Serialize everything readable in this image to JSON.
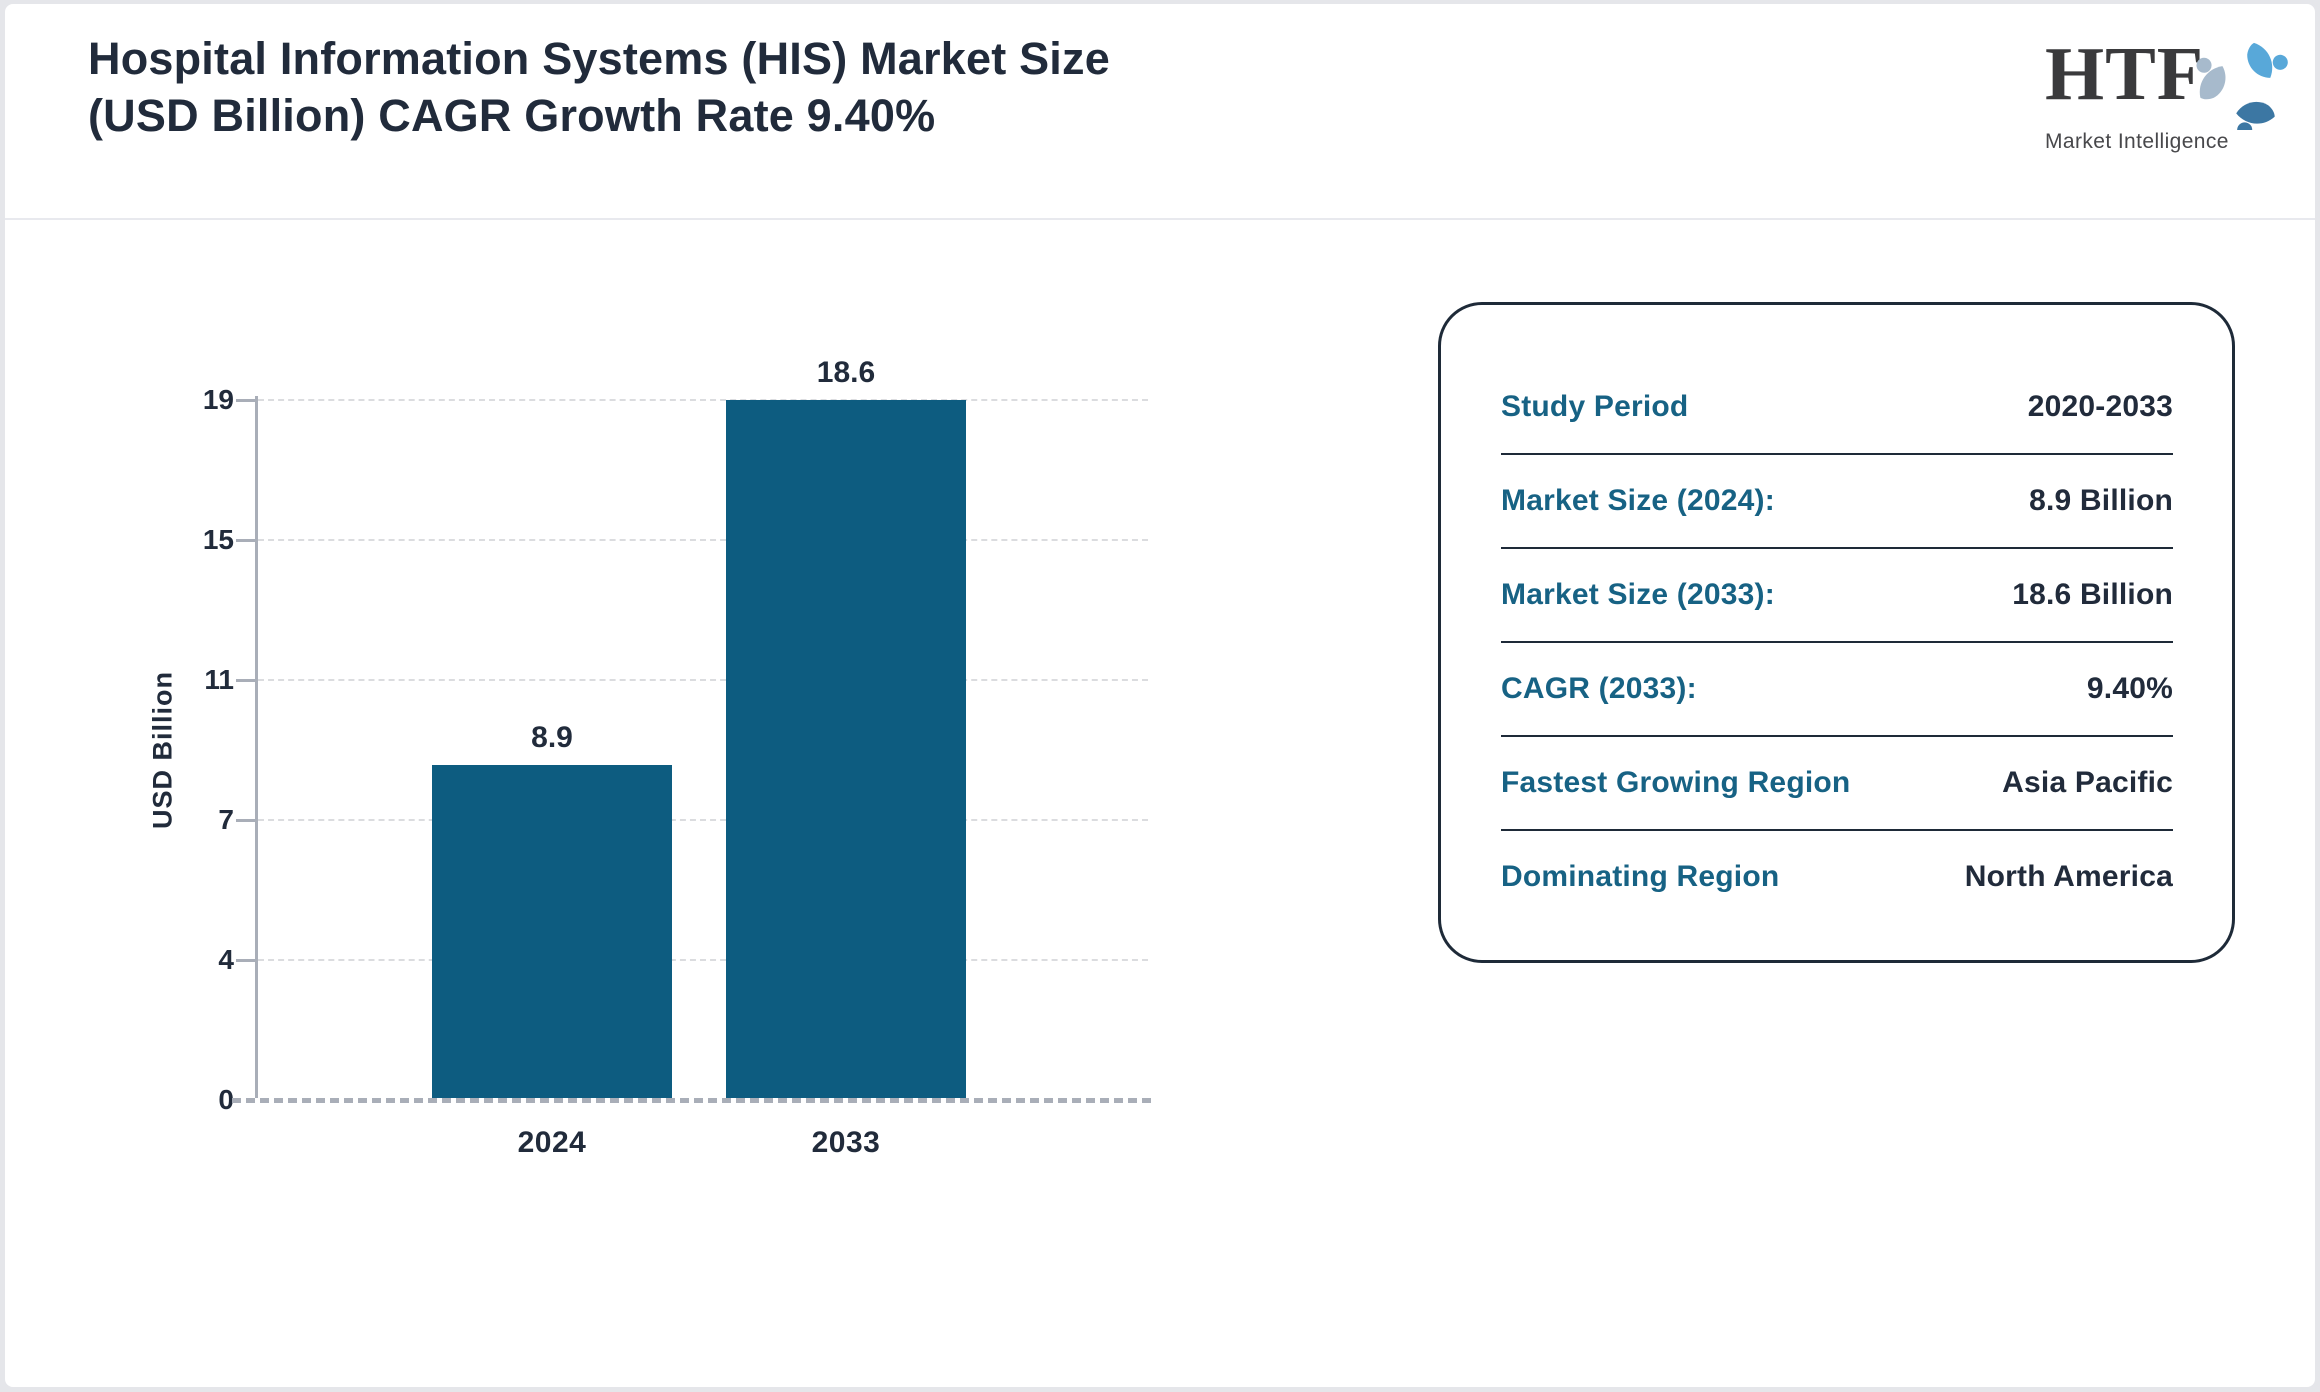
{
  "header": {
    "title_line1": "Hospital Information Systems (HIS) Market Size",
    "title_line2": "(USD Billion) CAGR Growth Rate 9.40%"
  },
  "logo": {
    "name": "HTF",
    "tagline": "Market Intelligence"
  },
  "chart_data": {
    "type": "bar",
    "title": "Hospital Information Systems (HIS) Market Size (USD Billion) CAGR Growth Rate 9.40%",
    "categories": [
      "2024",
      "2033"
    ],
    "values": [
      8.9,
      18.6
    ],
    "data_labels": [
      "8.9",
      "18.6"
    ],
    "xlabel": "",
    "ylabel": "USD Billion",
    "ylim": [
      0,
      18.6
    ],
    "ytick_labels_bottom_to_top": [
      "0",
      "4",
      "7",
      "11",
      "15",
      "19"
    ],
    "grid": "horizontal-dashed",
    "legend": "none",
    "bar_color": "#0D5C80"
  },
  "info_panel": {
    "rows": [
      {
        "label": "Study Period",
        "value": "2020-2033"
      },
      {
        "label": "Market Size (2024):",
        "value": "8.9 Billion"
      },
      {
        "label": "Market Size (2033):",
        "value": "18.6 Billion"
      },
      {
        "label": "CAGR (2033):",
        "value": "9.40%"
      },
      {
        "label": "Fastest Growing Region",
        "value": "Asia Pacific"
      },
      {
        "label": "Dominating Region",
        "value": "North America"
      }
    ]
  },
  "colors": {
    "bar": "#0D5C80",
    "label_teal": "#176284",
    "text_navy": "#212B3B",
    "axis_gray": "#A9AEB8",
    "background": "#E5E6EA"
  }
}
